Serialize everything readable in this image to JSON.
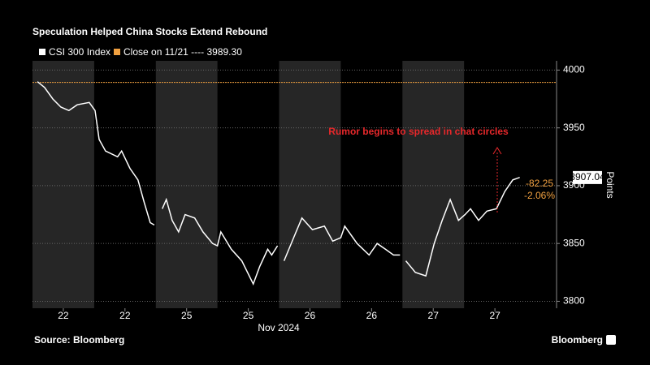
{
  "chart_data": {
    "type": "line",
    "title": "Speculation Helped China Stocks Extend Rebound",
    "y_label": "Points",
    "x_label": "Nov 2024",
    "source": "Source: Bloomberg",
    "brand": "Bloomberg",
    "series": [
      {
        "name": "CSI 300 Index",
        "color": "#ffffff",
        "x": [
          0.16,
          0.39,
          0.66,
          0.92,
          1.18,
          1.45,
          1.84,
          2.03,
          2.16,
          2.37,
          2.76,
          2.89,
          3.16,
          3.42,
          3.63,
          3.82,
          3.95,
          4.0,
          4.21,
          4.34,
          4.53,
          4.74,
          4.95,
          5.26,
          5.53,
          5.84,
          6.0,
          6.11,
          6.45,
          6.79,
          7.16,
          7.37,
          7.63,
          7.76,
          7.95,
          8.0,
          8.16,
          8.55,
          8.74,
          9.08,
          9.47,
          9.74,
          10.0,
          10.13,
          10.53,
          10.92,
          11.18,
          11.45,
          11.71,
          11.92,
          12.0,
          12.11,
          12.42,
          12.76,
          13.03,
          13.29,
          13.55,
          13.82,
          14.03,
          14.21,
          14.47,
          14.74,
          15.05,
          15.32,
          15.58,
          15.79
        ],
        "values": [
          3990,
          3985,
          3975,
          3968,
          3965,
          3970,
          3972,
          3965,
          3940,
          3930,
          3925,
          3930,
          3915,
          3905,
          3885,
          3868,
          3866,
          null,
          3880,
          3888,
          3870,
          3860,
          3875,
          3872,
          3860,
          3850,
          3848,
          3860,
          3845,
          3835,
          3815,
          3830,
          3845,
          3840,
          3848,
          null,
          3835,
          3860,
          3872,
          3862,
          3865,
          3852,
          3855,
          3865,
          3850,
          3840,
          3850,
          3845,
          3840,
          3840,
          null,
          3835,
          3825,
          3822,
          3850,
          3870,
          3888,
          3870,
          3875,
          3880,
          3870,
          3878,
          3880,
          3895,
          3905,
          3907.04
        ]
      }
    ],
    "reference": {
      "name": "Close on 11/21 ---- 3989.30",
      "value": 3989.3,
      "color": "#f0a040"
    },
    "annotations": [
      "Rumor begins to spread in chat circles",
      "-82.25",
      "-2.06%"
    ],
    "xlim": [
      0,
      17
    ],
    "xticks": [
      {
        "value": 1,
        "label": "22"
      },
      {
        "value": 3,
        "label": "22"
      },
      {
        "value": 5,
        "label": "25"
      },
      {
        "value": 7,
        "label": "25"
      },
      {
        "value": 9,
        "label": "26"
      },
      {
        "value": 11,
        "label": "26"
      },
      {
        "value": 13,
        "label": "27"
      },
      {
        "value": 15,
        "label": "27"
      }
    ],
    "ylim": [
      3794,
      4008
    ],
    "yticks": [
      3800,
      3850,
      3900,
      3950,
      4000
    ],
    "grid": true
  }
}
